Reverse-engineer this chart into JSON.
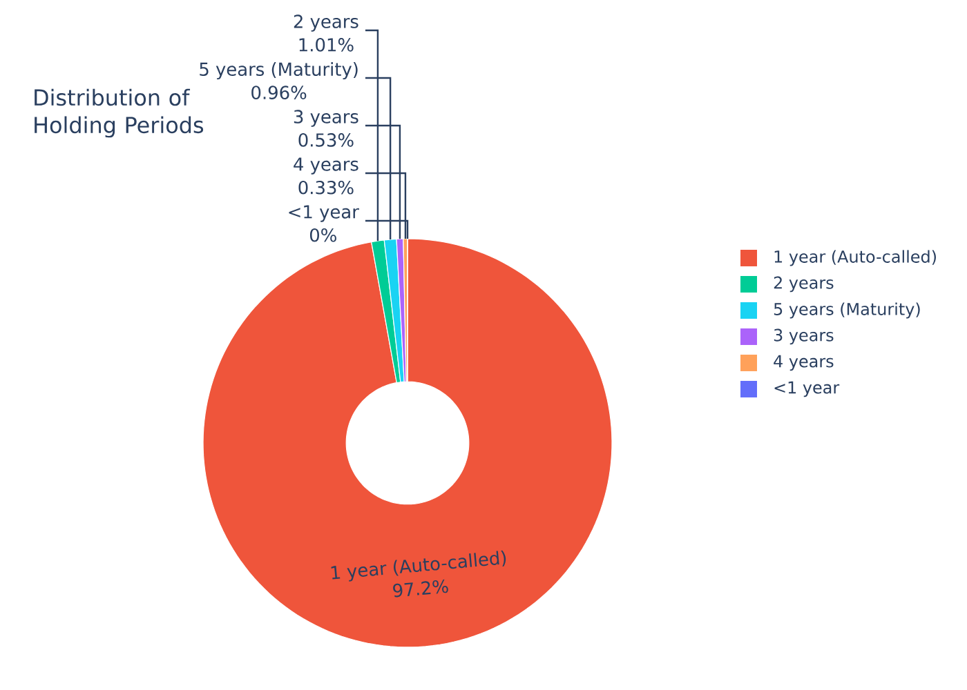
{
  "chart_data": {
    "type": "donut",
    "title": "Distribution of Holding Periods",
    "categories": [
      "1 year (Auto-called)",
      "2 years",
      "5 years (Maturity)",
      "3 years",
      "4 years",
      "<1 year"
    ],
    "values": [
      97.17,
      1.01,
      0.96,
      0.53,
      0.33,
      0
    ],
    "colors": [
      "#ef553b",
      "#00cc96",
      "#19d3f3",
      "#ab63fa",
      "#ffa15a",
      "#636efa"
    ],
    "value_labels": [
      "97.2%",
      "1.01%",
      "0.96%",
      "0.53%",
      "0.33%",
      "0%"
    ],
    "legend": "right"
  }
}
